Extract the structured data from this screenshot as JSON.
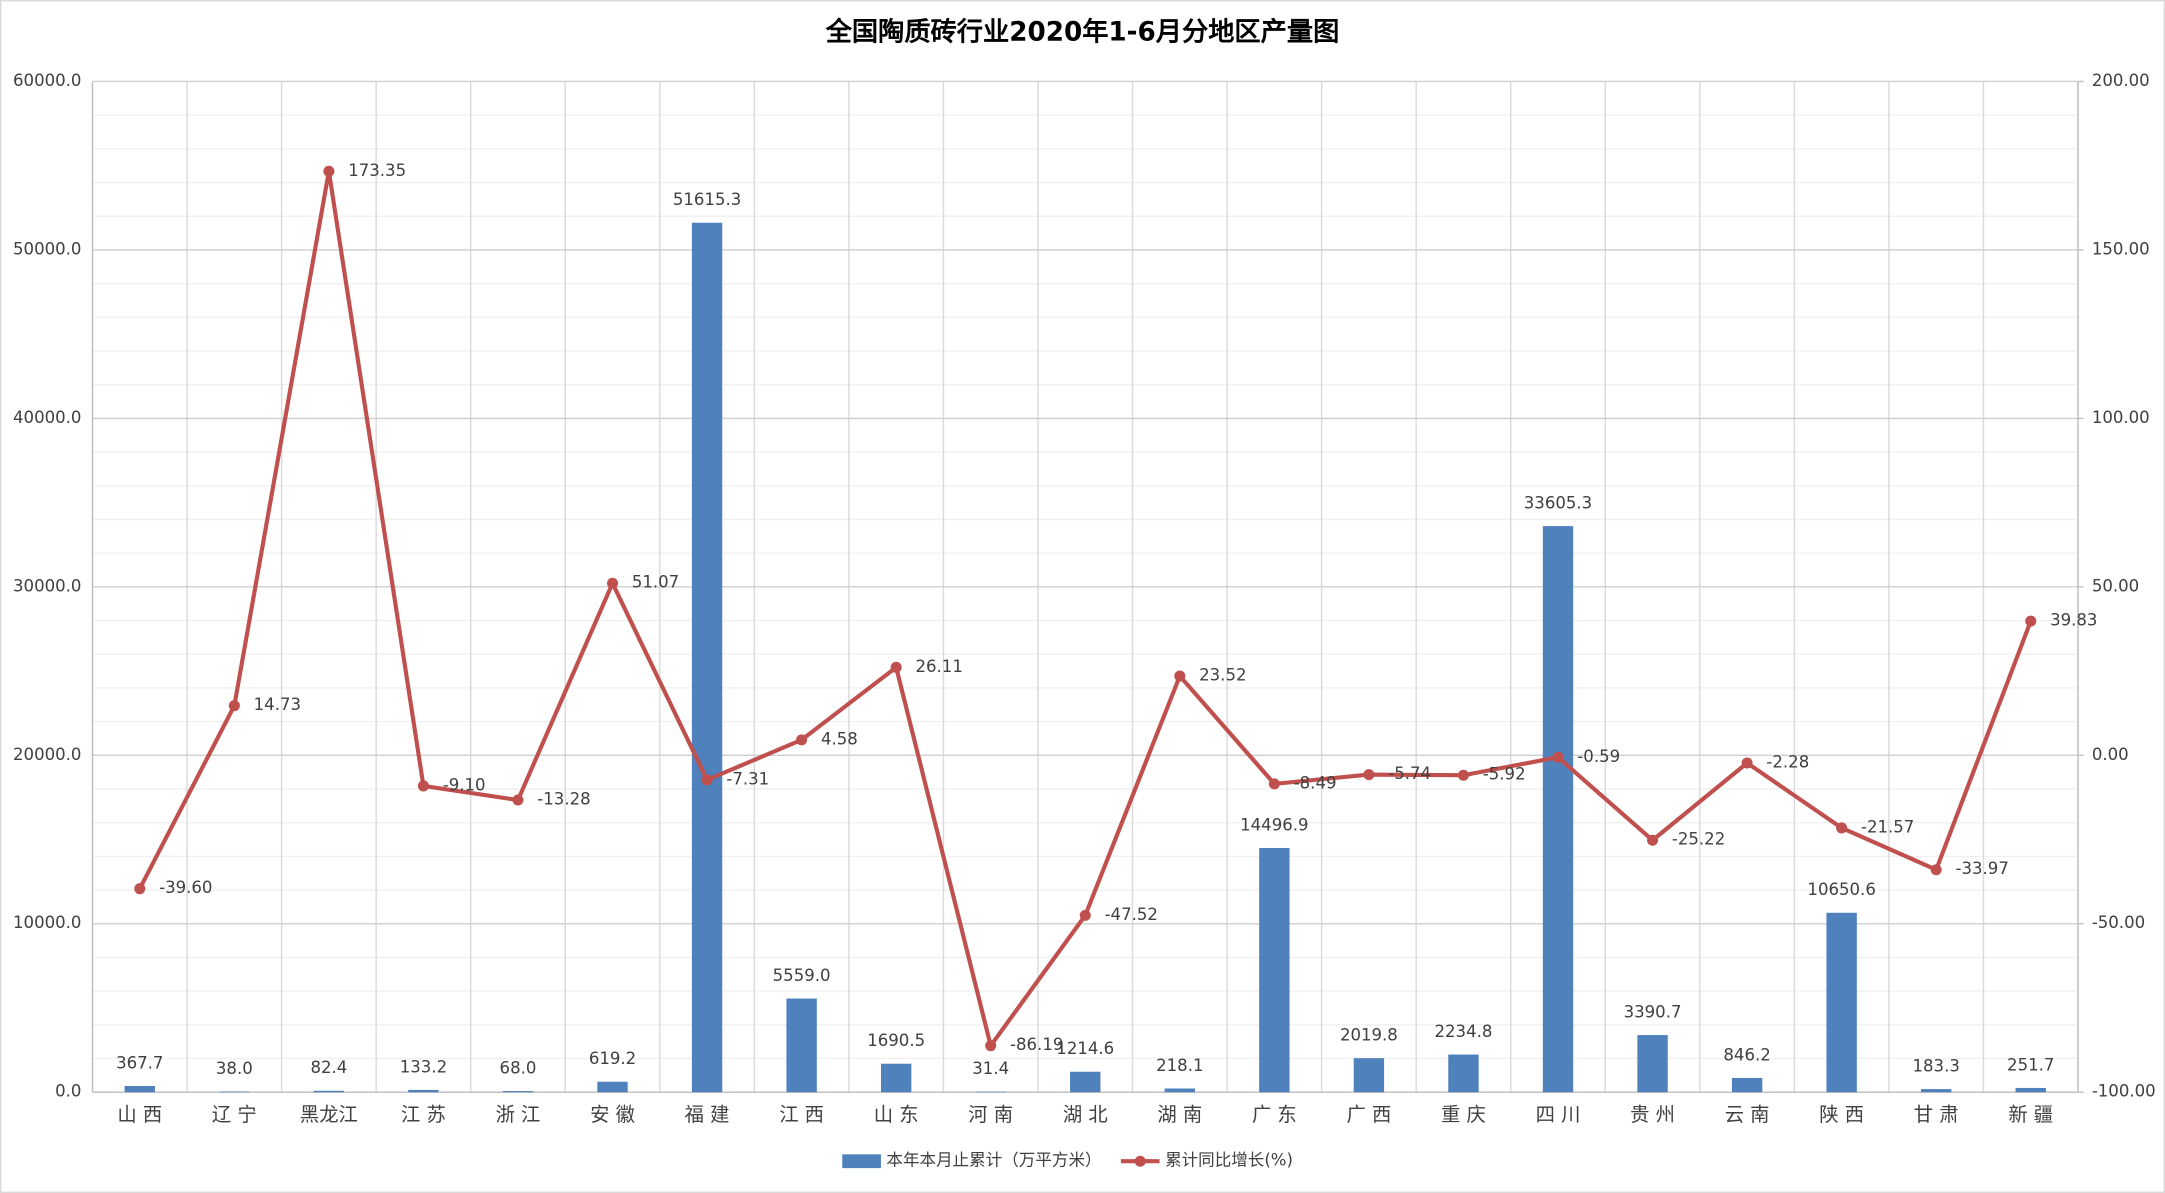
{
  "chart_data": {
    "type": "bar_line",
    "title": "全国陶质砖行业2020年1-6月分地区产量图",
    "categories": [
      "山 西",
      "辽 宁",
      "黑龙江",
      "江 苏",
      "浙 江",
      "安 徽",
      "福 建",
      "江 西",
      "山 东",
      "河 南",
      "湖 北",
      "湖 南",
      "广 东",
      "广 西",
      "重 庆",
      "四 川",
      "贵 州",
      "云 南",
      "陕 西",
      "甘 肃",
      "新 疆"
    ],
    "series": [
      {
        "name": "本年本月止累计（万平方米）",
        "type": "bar",
        "color": "#4f81bd",
        "values": [
          367.7,
          38.0,
          82.4,
          133.2,
          68.0,
          619.2,
          51615.3,
          5559.0,
          1690.5,
          31.4,
          1214.6,
          218.1,
          14496.9,
          2019.8,
          2234.8,
          33605.3,
          3390.7,
          846.2,
          10650.6,
          183.3,
          251.7
        ],
        "value_labels": [
          "367.7",
          "38.0",
          "82.4",
          "133.2",
          "68.0",
          "619.2",
          "51615.3",
          "5559.0",
          "1690.5",
          "31.4",
          "1214.6",
          "218.1",
          "14496.9",
          "2019.8",
          "2234.8",
          "33605.3",
          "3390.7",
          "846.2",
          "10650.6",
          "183.3",
          "251.7"
        ]
      },
      {
        "name": "累计同比增长(%)",
        "type": "line",
        "axis": "y2",
        "color": "#c0504d",
        "values": [
          -39.6,
          14.73,
          173.35,
          -9.1,
          -13.28,
          51.07,
          -7.31,
          4.58,
          26.11,
          -86.19,
          -47.52,
          23.52,
          -8.49,
          -5.74,
          -5.92,
          -0.59,
          -25.22,
          -2.28,
          -21.57,
          -33.97,
          39.83
        ],
        "value_labels": [
          "-39.60",
          "14.73",
          "173.35",
          "-9.10",
          "-13.28",
          "51.07",
          "-7.31",
          "4.58",
          "26.11",
          "-86.19",
          "-47.52",
          "23.52",
          "-8.49",
          "-5.74",
          "-5.92",
          "-0.59",
          "-25.22",
          "-2.28",
          "-21.57",
          "-33.97",
          "39.83"
        ]
      }
    ],
    "ylim": [
      0,
      60000
    ],
    "yticks": [
      {
        "value": 0,
        "label": "0.0"
      },
      {
        "value": 10000,
        "label": "10000.0"
      },
      {
        "value": 20000,
        "label": "20000.0"
      },
      {
        "value": 30000,
        "label": "30000.0"
      },
      {
        "value": 40000,
        "label": "40000.0"
      },
      {
        "value": 50000,
        "label": "50000.0"
      },
      {
        "value": 60000,
        "label": "60000.0"
      }
    ],
    "y2lim": [
      -100,
      200
    ],
    "y2ticks": [
      {
        "value": -100,
        "label": "-100.00"
      },
      {
        "value": -50,
        "label": "-50.00"
      },
      {
        "value": 0,
        "label": "0.00"
      },
      {
        "value": 50,
        "label": "50.00"
      },
      {
        "value": 100,
        "label": "100.00"
      },
      {
        "value": 150,
        "label": "150.00"
      },
      {
        "value": 200,
        "label": "200.00"
      }
    ],
    "grid": true,
    "legend": "bottom"
  }
}
